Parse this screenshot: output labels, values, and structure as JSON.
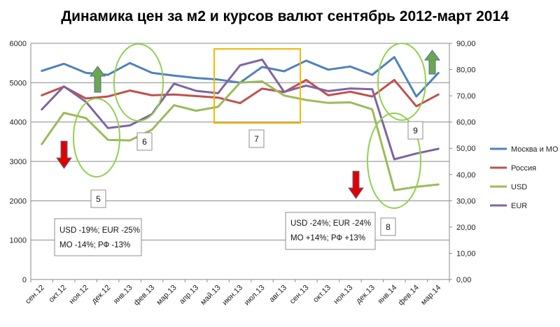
{
  "chart_data": {
    "type": "line",
    "title": "Динамика цен за м2 и курсов валют сентябрь 2012-март 2014",
    "categories": [
      "сен.12",
      "окт.12",
      "ноя.12",
      "дек.12",
      "янв.13",
      "фев.13",
      "мар.13",
      "апр.13",
      "май.13",
      "июн.13",
      "июл.13",
      "авг.13",
      "сен.13",
      "окт.13",
      "ноя.13",
      "дек.13",
      "янв.14",
      "фев.14",
      "мар.14"
    ],
    "y_left": {
      "range": [
        0,
        6000
      ],
      "ticks": [
        "0",
        "1000",
        "2000",
        "3000",
        "4000",
        "5000",
        "6000"
      ]
    },
    "y_right": {
      "range": [
        0,
        90
      ],
      "ticks": [
        "0,00",
        "10,00",
        "20,00",
        "30,00",
        "40,00",
        "50,00",
        "60,00",
        "70,00",
        "80,00",
        "90,00"
      ]
    },
    "grid": "horizontal",
    "legend_position": "right",
    "series": [
      {
        "name": "Москва и МО",
        "axis": "left",
        "color": "#4f81bd",
        "values": [
          5300,
          5480,
          5250,
          5200,
          5500,
          5250,
          5180,
          5120,
          5080,
          5000,
          5400,
          5290,
          5560,
          5330,
          5410,
          5200,
          5650,
          4650,
          5250
        ]
      },
      {
        "name": "Россия",
        "axis": "left",
        "color": "#c0504d",
        "values": [
          4680,
          4900,
          4600,
          4650,
          4800,
          4680,
          4700,
          4660,
          4620,
          4480,
          4850,
          4760,
          5070,
          4680,
          4770,
          4650,
          5070,
          4400,
          4700
        ]
      },
      {
        "name": "USD",
        "axis": "right",
        "color": "#9bbb59",
        "values": [
          51.6,
          63.5,
          61.5,
          53.2,
          53.0,
          57.1,
          66.4,
          64.3,
          65.8,
          75.0,
          75.5,
          70.1,
          68.4,
          67.3,
          67.5,
          64.8,
          34.0,
          35.3,
          36.2
        ]
      },
      {
        "name": "EUR",
        "axis": "right",
        "color": "#8064a2",
        "values": [
          64.8,
          73.6,
          67.7,
          57.7,
          58.7,
          63.0,
          74.6,
          71.9,
          71.0,
          81.6,
          83.8,
          71.5,
          73.9,
          71.8,
          72.8,
          72.5,
          45.8,
          48.0,
          49.8
        ]
      }
    ],
    "annotations": {
      "labels": [
        "5",
        "6",
        "7",
        "8",
        "9"
      ],
      "note1": [
        "USD -19%; EUR -25%",
        "МО -14%; РФ -13%"
      ],
      "note2": [
        "USD -24%; EUR -24%",
        "МО +14%; РФ +13%"
      ],
      "arrows": [
        {
          "direction": "down",
          "color": "#e00000"
        },
        {
          "direction": "up",
          "color": "#6aa84f"
        },
        {
          "direction": "down",
          "color": "#e00000"
        },
        {
          "direction": "up",
          "color": "#6aa84f"
        }
      ],
      "ellipse_color": "#92d050",
      "box_color": "#f5b800"
    }
  }
}
